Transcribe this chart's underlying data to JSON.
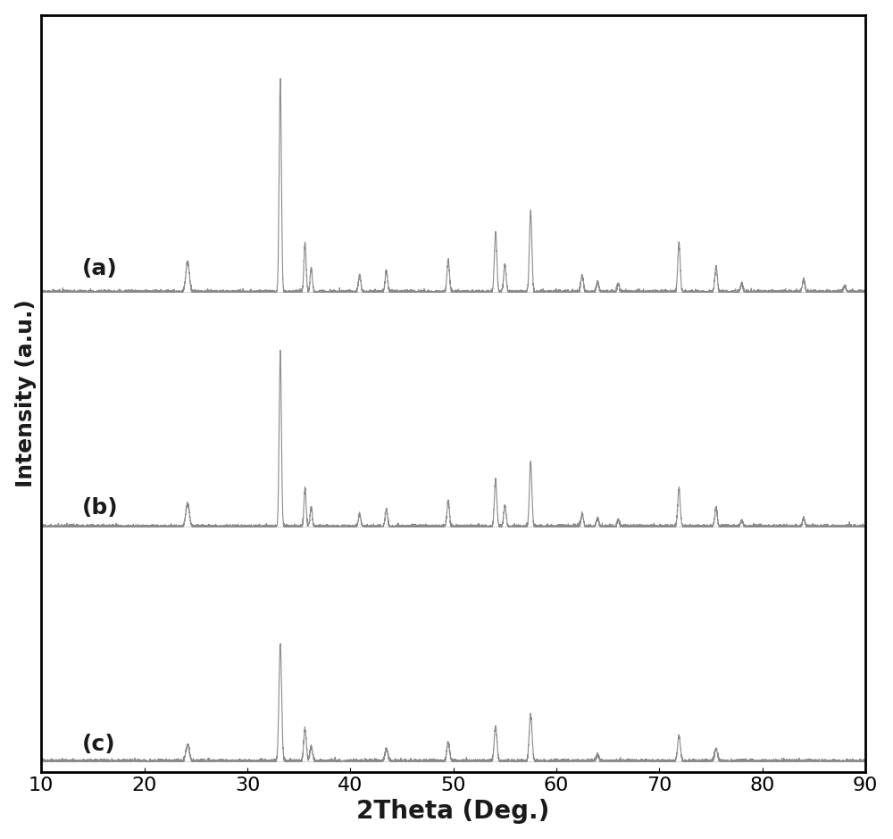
{
  "xlabel": "2Theta (Deg.)",
  "ylabel": "Intensity (a.u.)",
  "xlim": [
    10,
    90
  ],
  "background_color": "#ffffff",
  "line_color": "#8a8a8a",
  "label_color": "#1a1a1a",
  "label_fontsize": 18,
  "tick_fontsize": 16,
  "series_labels": [
    "(a)",
    "(b)",
    "(c)"
  ],
  "offsets": [
    2.2,
    1.1,
    0.0
  ],
  "noise_level": 0.005,
  "figure_width": 10.0,
  "figure_height": 9.4,
  "peaks_a_pos": [
    24.2,
    33.2,
    35.6,
    36.2,
    40.9,
    43.5,
    49.5,
    54.1,
    55.0,
    57.5,
    62.5,
    64.0,
    66.0,
    71.9,
    75.5,
    78.0,
    84.0,
    88.0
  ],
  "peaks_a_hgt": [
    0.14,
    1.0,
    0.23,
    0.11,
    0.08,
    0.1,
    0.15,
    0.28,
    0.13,
    0.38,
    0.08,
    0.05,
    0.04,
    0.23,
    0.12,
    0.04,
    0.06,
    0.03
  ],
  "peaks_a_wid": [
    0.4,
    0.25,
    0.25,
    0.25,
    0.28,
    0.28,
    0.28,
    0.28,
    0.28,
    0.28,
    0.28,
    0.28,
    0.28,
    0.28,
    0.28,
    0.28,
    0.28,
    0.28
  ],
  "peaks_b_pos": [
    24.2,
    33.2,
    35.6,
    36.2,
    40.9,
    43.5,
    49.5,
    54.1,
    55.0,
    57.5,
    62.5,
    64.0,
    66.0,
    71.9,
    75.5,
    78.0,
    84.0
  ],
  "peaks_b_hgt": [
    0.11,
    0.82,
    0.18,
    0.09,
    0.06,
    0.08,
    0.12,
    0.22,
    0.1,
    0.3,
    0.06,
    0.04,
    0.03,
    0.18,
    0.09,
    0.03,
    0.04
  ],
  "peaks_b_wid": [
    0.4,
    0.25,
    0.25,
    0.25,
    0.28,
    0.28,
    0.28,
    0.28,
    0.28,
    0.28,
    0.28,
    0.28,
    0.28,
    0.28,
    0.28,
    0.28,
    0.28
  ],
  "peaks_c_pos": [
    24.2,
    33.2,
    35.6,
    36.2,
    43.5,
    49.5,
    54.1,
    57.5,
    64.0,
    71.9,
    75.5
  ],
  "peaks_c_hgt": [
    0.08,
    0.55,
    0.15,
    0.07,
    0.06,
    0.09,
    0.16,
    0.22,
    0.03,
    0.12,
    0.06
  ],
  "peaks_c_wid": [
    0.4,
    0.3,
    0.3,
    0.3,
    0.32,
    0.32,
    0.32,
    0.32,
    0.32,
    0.32,
    0.32
  ]
}
